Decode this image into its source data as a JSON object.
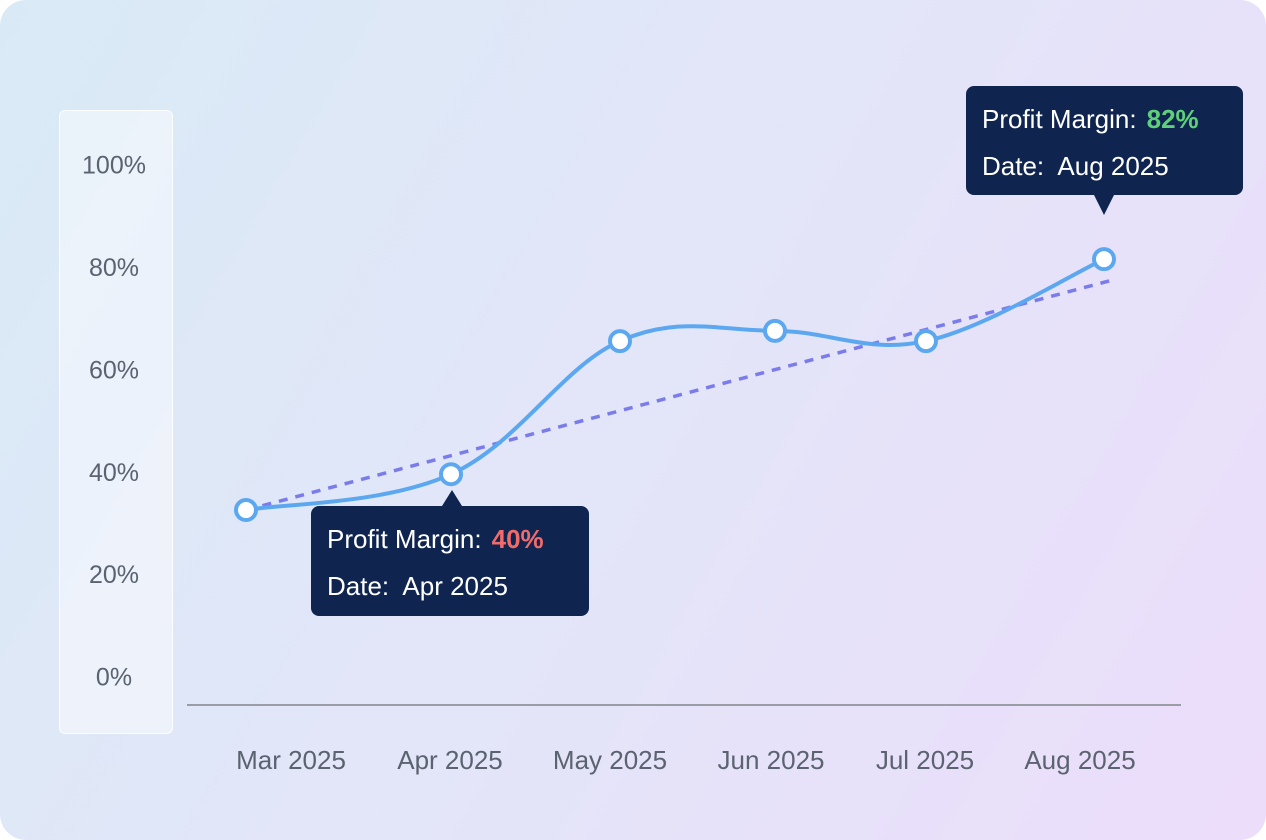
{
  "chart_data": {
    "type": "line",
    "categories": [
      "Mar 2025",
      "Apr 2025",
      "May 2025",
      "Jun 2025",
      "Jul 2025",
      "Aug 2025"
    ],
    "series": [
      {
        "values": [
          33,
          40,
          66,
          68,
          66,
          82
        ],
        "color": "#5ba8f0"
      }
    ],
    "trendline": {
      "start": 33,
      "end": 78,
      "style": "dashed",
      "color": "#7b7cec"
    },
    "y_ticks": [
      "100%",
      "80%",
      "60%",
      "40%",
      "20%",
      "0%"
    ],
    "ylim": [
      0,
      100
    ],
    "grid": false
  },
  "tooltips": [
    {
      "label": "Profit Margin:",
      "value": "40%",
      "value_color": "#f26b6b",
      "date_label": "Date:",
      "date": "Apr 2025"
    },
    {
      "label": "Profit Margin:",
      "value": "82%",
      "value_color": "#5fd07a",
      "date_label": "Date:",
      "date": "Aug 2025"
    }
  ]
}
